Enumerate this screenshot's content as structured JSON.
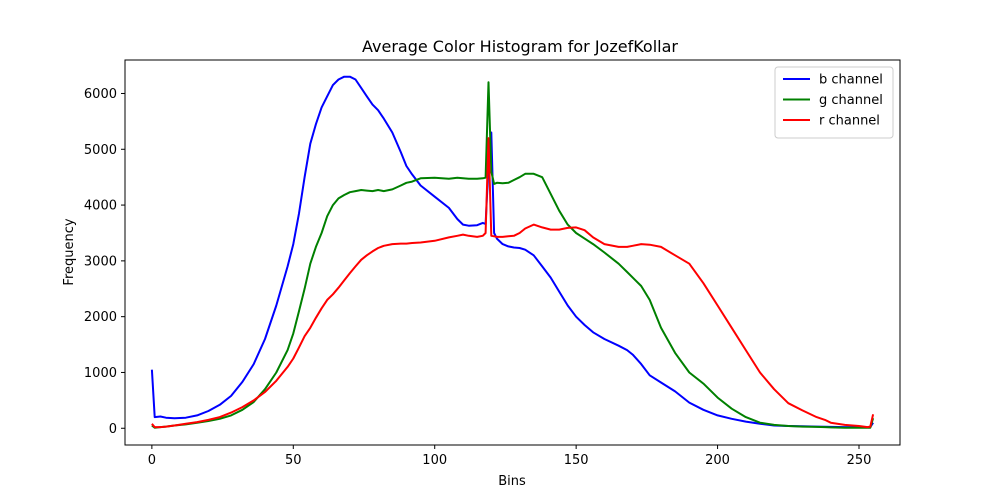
{
  "chart_data": {
    "type": "line",
    "title": "Average Color Histogram for JozefKollar",
    "xlabel": "Bins",
    "ylabel": "Frequency",
    "xlim": [
      -9.5,
      264.5
    ],
    "ylim": [
      -300,
      6600
    ],
    "xticks": [
      0,
      50,
      100,
      150,
      200,
      250
    ],
    "yticks": [
      0,
      1000,
      2000,
      3000,
      4000,
      5000,
      6000
    ],
    "grid": false,
    "legend_position": "top-right",
    "series": [
      {
        "name": "b channel",
        "color": "#0000ff",
        "x": [
          0,
          1,
          3,
          5,
          8,
          12,
          16,
          20,
          24,
          28,
          32,
          36,
          40,
          44,
          48,
          50,
          52,
          54,
          56,
          58,
          60,
          62,
          64,
          66,
          68,
          70,
          72,
          74,
          76,
          78,
          80,
          82,
          85,
          88,
          90,
          92,
          95,
          100,
          105,
          108,
          110,
          112,
          115,
          117,
          118,
          119,
          120,
          121,
          122,
          124,
          126,
          128,
          130,
          132,
          135,
          138,
          141,
          144,
          147,
          150,
          153,
          156,
          160,
          165,
          168,
          170,
          173,
          176,
          180,
          185,
          190,
          195,
          200,
          205,
          210,
          215,
          220,
          225,
          230,
          235,
          238,
          240,
          245,
          250,
          253,
          254,
          255
        ],
        "y": [
          1050,
          200,
          210,
          190,
          180,
          190,
          230,
          310,
          420,
          580,
          830,
          1150,
          1600,
          2200,
          2900,
          3300,
          3850,
          4500,
          5100,
          5450,
          5750,
          5950,
          6150,
          6250,
          6300,
          6300,
          6250,
          6100,
          5950,
          5800,
          5700,
          5550,
          5300,
          4950,
          4700,
          4550,
          4350,
          4150,
          3950,
          3750,
          3650,
          3630,
          3640,
          3680,
          3660,
          4700,
          5300,
          3500,
          3400,
          3300,
          3260,
          3240,
          3230,
          3200,
          3100,
          2900,
          2700,
          2450,
          2200,
          2000,
          1850,
          1720,
          1600,
          1480,
          1400,
          1320,
          1150,
          950,
          820,
          660,
          460,
          330,
          230,
          170,
          120,
          80,
          50,
          40,
          35,
          30,
          28,
          25,
          20,
          20,
          15,
          20,
          100
        ]
      },
      {
        "name": "g channel",
        "color": "#008000",
        "x": [
          0,
          1,
          3,
          5,
          8,
          12,
          16,
          20,
          24,
          28,
          32,
          36,
          40,
          44,
          48,
          50,
          52,
          54,
          56,
          58,
          60,
          62,
          64,
          66,
          68,
          70,
          72,
          74,
          76,
          78,
          80,
          82,
          85,
          88,
          90,
          92,
          95,
          100,
          105,
          108,
          110,
          112,
          115,
          117,
          118,
          119,
          120,
          121,
          122,
          124,
          126,
          128,
          130,
          132,
          135,
          138,
          141,
          144,
          147,
          150,
          153,
          156,
          160,
          165,
          168,
          170,
          173,
          176,
          180,
          185,
          190,
          195,
          200,
          205,
          210,
          215,
          220,
          225,
          230,
          235,
          238,
          240,
          245,
          250,
          253,
          254,
          255
        ],
        "y": [
          50,
          10,
          20,
          30,
          50,
          70,
          100,
          130,
          170,
          230,
          330,
          470,
          700,
          1000,
          1400,
          1700,
          2100,
          2500,
          2950,
          3250,
          3500,
          3800,
          4000,
          4120,
          4180,
          4230,
          4250,
          4270,
          4260,
          4250,
          4270,
          4250,
          4280,
          4350,
          4400,
          4420,
          4480,
          4490,
          4470,
          4490,
          4480,
          4470,
          4470,
          4480,
          4490,
          6200,
          4600,
          4380,
          4400,
          4390,
          4400,
          4450,
          4500,
          4560,
          4560,
          4500,
          4200,
          3900,
          3650,
          3500,
          3400,
          3300,
          3150,
          2950,
          2800,
          2700,
          2550,
          2300,
          1800,
          1350,
          1000,
          800,
          550,
          350,
          200,
          100,
          60,
          40,
          30,
          25,
          20,
          15,
          10,
          10,
          10,
          10,
          180
        ]
      },
      {
        "name": "r channel",
        "color": "#ff0000",
        "x": [
          0,
          1,
          3,
          5,
          8,
          12,
          16,
          20,
          24,
          28,
          32,
          36,
          40,
          44,
          48,
          50,
          52,
          54,
          56,
          58,
          60,
          62,
          64,
          66,
          68,
          70,
          72,
          74,
          76,
          78,
          80,
          82,
          85,
          88,
          90,
          92,
          95,
          100,
          105,
          108,
          110,
          112,
          115,
          117,
          118,
          119,
          120,
          121,
          122,
          124,
          126,
          128,
          130,
          132,
          135,
          138,
          141,
          144,
          147,
          150,
          153,
          156,
          160,
          165,
          168,
          170,
          173,
          176,
          180,
          185,
          190,
          195,
          200,
          205,
          210,
          215,
          220,
          225,
          230,
          235,
          238,
          240,
          245,
          250,
          253,
          254,
          255
        ],
        "y": [
          80,
          20,
          20,
          30,
          50,
          80,
          110,
          150,
          200,
          280,
          380,
          500,
          650,
          850,
          1100,
          1250,
          1450,
          1650,
          1800,
          1980,
          2150,
          2300,
          2400,
          2520,
          2650,
          2780,
          2900,
          3020,
          3100,
          3170,
          3230,
          3270,
          3300,
          3310,
          3310,
          3320,
          3330,
          3360,
          3420,
          3450,
          3470,
          3450,
          3430,
          3450,
          3500,
          5200,
          3450,
          3440,
          3430,
          3430,
          3440,
          3450,
          3500,
          3580,
          3650,
          3600,
          3560,
          3560,
          3590,
          3600,
          3550,
          3420,
          3300,
          3250,
          3250,
          3270,
          3300,
          3290,
          3250,
          3100,
          2950,
          2600,
          2200,
          1800,
          1400,
          1000,
          700,
          450,
          320,
          200,
          150,
          100,
          60,
          40,
          20,
          30,
          250
        ]
      }
    ]
  }
}
